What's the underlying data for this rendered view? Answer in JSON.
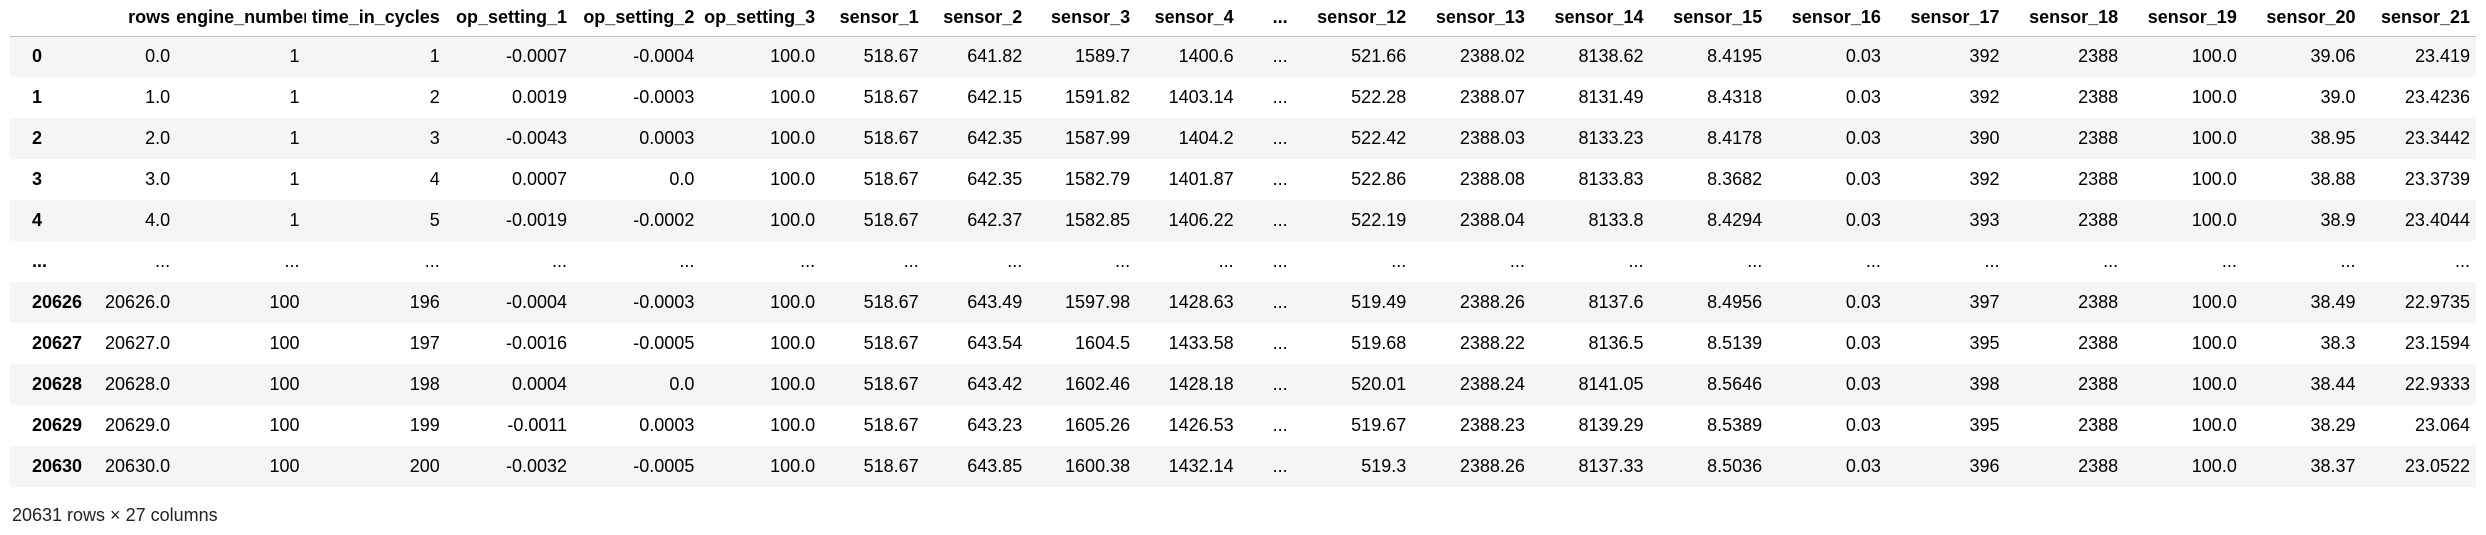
{
  "table": {
    "index_header": "",
    "columns": [
      "rows",
      "engine_number",
      "time_in_cycles",
      "op_setting_1",
      "op_setting_2",
      "op_setting_3",
      "sensor_1",
      "sensor_2",
      "sensor_3",
      "sensor_4",
      "...",
      "sensor_12",
      "sensor_13",
      "sensor_14",
      "sensor_15",
      "sensor_16",
      "sensor_17",
      "sensor_18",
      "sensor_19",
      "sensor_20",
      "sensor_21"
    ],
    "rows": [
      {
        "index": "0",
        "cells": [
          "0.0",
          "1",
          "1",
          "-0.0007",
          "-0.0004",
          "100.0",
          "518.67",
          "641.82",
          "1589.7",
          "1400.6",
          "...",
          "521.66",
          "2388.02",
          "8138.62",
          "8.4195",
          "0.03",
          "392",
          "2388",
          "100.0",
          "39.06",
          "23.419"
        ]
      },
      {
        "index": "1",
        "cells": [
          "1.0",
          "1",
          "2",
          "0.0019",
          "-0.0003",
          "100.0",
          "518.67",
          "642.15",
          "1591.82",
          "1403.14",
          "...",
          "522.28",
          "2388.07",
          "8131.49",
          "8.4318",
          "0.03",
          "392",
          "2388",
          "100.0",
          "39.0",
          "23.4236"
        ]
      },
      {
        "index": "2",
        "cells": [
          "2.0",
          "1",
          "3",
          "-0.0043",
          "0.0003",
          "100.0",
          "518.67",
          "642.35",
          "1587.99",
          "1404.2",
          "...",
          "522.42",
          "2388.03",
          "8133.23",
          "8.4178",
          "0.03",
          "390",
          "2388",
          "100.0",
          "38.95",
          "23.3442"
        ]
      },
      {
        "index": "3",
        "cells": [
          "3.0",
          "1",
          "4",
          "0.0007",
          "0.0",
          "100.0",
          "518.67",
          "642.35",
          "1582.79",
          "1401.87",
          "...",
          "522.86",
          "2388.08",
          "8133.83",
          "8.3682",
          "0.03",
          "392",
          "2388",
          "100.0",
          "38.88",
          "23.3739"
        ]
      },
      {
        "index": "4",
        "cells": [
          "4.0",
          "1",
          "5",
          "-0.0019",
          "-0.0002",
          "100.0",
          "518.67",
          "642.37",
          "1582.85",
          "1406.22",
          "...",
          "522.19",
          "2388.04",
          "8133.8",
          "8.4294",
          "0.03",
          "393",
          "2388",
          "100.0",
          "38.9",
          "23.4044"
        ]
      },
      {
        "index": "...",
        "cells": [
          "...",
          "...",
          "...",
          "...",
          "...",
          "...",
          "...",
          "...",
          "...",
          "...",
          "...",
          "...",
          "...",
          "...",
          "...",
          "...",
          "...",
          "...",
          "...",
          "...",
          "..."
        ]
      },
      {
        "index": "20626",
        "cells": [
          "20626.0",
          "100",
          "196",
          "-0.0004",
          "-0.0003",
          "100.0",
          "518.67",
          "643.49",
          "1597.98",
          "1428.63",
          "...",
          "519.49",
          "2388.26",
          "8137.6",
          "8.4956",
          "0.03",
          "397",
          "2388",
          "100.0",
          "38.49",
          "22.9735"
        ]
      },
      {
        "index": "20627",
        "cells": [
          "20627.0",
          "100",
          "197",
          "-0.0016",
          "-0.0005",
          "100.0",
          "518.67",
          "643.54",
          "1604.5",
          "1433.58",
          "...",
          "519.68",
          "2388.22",
          "8136.5",
          "8.5139",
          "0.03",
          "395",
          "2388",
          "100.0",
          "38.3",
          "23.1594"
        ]
      },
      {
        "index": "20628",
        "cells": [
          "20628.0",
          "100",
          "198",
          "0.0004",
          "0.0",
          "100.0",
          "518.67",
          "643.42",
          "1602.46",
          "1428.18",
          "...",
          "520.01",
          "2388.24",
          "8141.05",
          "8.5646",
          "0.03",
          "398",
          "2388",
          "100.0",
          "38.44",
          "22.9333"
        ]
      },
      {
        "index": "20629",
        "cells": [
          "20629.0",
          "100",
          "199",
          "-0.0011",
          "0.0003",
          "100.0",
          "518.67",
          "643.23",
          "1605.26",
          "1426.53",
          "...",
          "519.67",
          "2388.23",
          "8139.29",
          "8.5389",
          "0.03",
          "395",
          "2388",
          "100.0",
          "38.29",
          "23.064"
        ]
      },
      {
        "index": "20630",
        "cells": [
          "20630.0",
          "100",
          "200",
          "-0.0032",
          "-0.0005",
          "100.0",
          "518.67",
          "643.85",
          "1600.38",
          "1432.14",
          "...",
          "519.3",
          "2388.26",
          "8137.33",
          "8.5036",
          "0.03",
          "396",
          "2388",
          "100.0",
          "38.37",
          "23.0522"
        ]
      }
    ]
  },
  "footer": {
    "shape_text": "20631 rows × 27 columns"
  }
}
